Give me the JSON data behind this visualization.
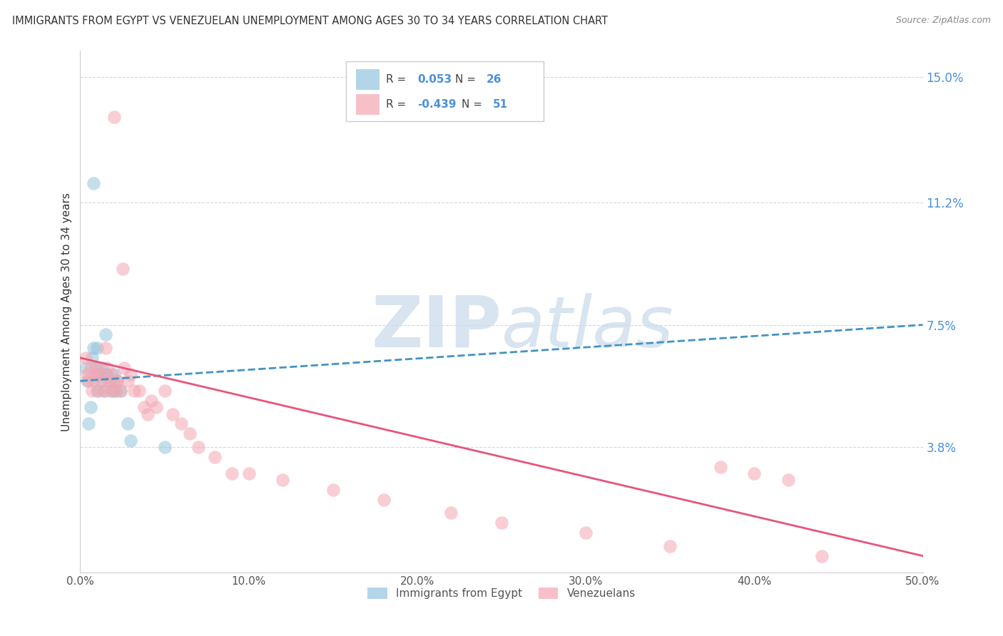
{
  "title": "IMMIGRANTS FROM EGYPT VS VENEZUELAN UNEMPLOYMENT AMONG AGES 30 TO 34 YEARS CORRELATION CHART",
  "source": "Source: ZipAtlas.com",
  "ylabel": "Unemployment Among Ages 30 to 34 years",
  "xlim": [
    0.0,
    0.5
  ],
  "ylim": [
    0.0,
    0.158
  ],
  "xticks": [
    0.0,
    0.1,
    0.2,
    0.3,
    0.4,
    0.5
  ],
  "xticklabels": [
    "0.0%",
    "10.0%",
    "20.0%",
    "30.0%",
    "40.0%",
    "50.0%"
  ],
  "right_yticks": [
    0.038,
    0.075,
    0.112,
    0.15
  ],
  "right_yticklabels": [
    "3.8%",
    "7.5%",
    "11.2%",
    "15.0%"
  ],
  "blue_color": "#92c5de",
  "pink_color": "#f4a6b2",
  "blue_line_color": "#4393c3",
  "pink_line_color": "#e8547a",
  "watermark_color": "#d8e4f0",
  "egypt_x": [
    0.003,
    0.004,
    0.005,
    0.006,
    0.007,
    0.008,
    0.009,
    0.01,
    0.01,
    0.011,
    0.012,
    0.013,
    0.014,
    0.015,
    0.015,
    0.016,
    0.018,
    0.019,
    0.02,
    0.021,
    0.022,
    0.024,
    0.028,
    0.03,
    0.05,
    0.008
  ],
  "egypt_y": [
    0.062,
    0.058,
    0.045,
    0.05,
    0.065,
    0.068,
    0.062,
    0.055,
    0.068,
    0.06,
    0.058,
    0.062,
    0.055,
    0.06,
    0.072,
    0.06,
    0.058,
    0.055,
    0.06,
    0.055,
    0.058,
    0.055,
    0.045,
    0.04,
    0.038,
    0.118
  ],
  "venezuela_x": [
    0.003,
    0.004,
    0.005,
    0.006,
    0.007,
    0.008,
    0.009,
    0.01,
    0.011,
    0.012,
    0.013,
    0.014,
    0.015,
    0.016,
    0.017,
    0.018,
    0.019,
    0.02,
    0.021,
    0.022,
    0.024,
    0.026,
    0.028,
    0.03,
    0.032,
    0.035,
    0.038,
    0.04,
    0.042,
    0.045,
    0.05,
    0.055,
    0.06,
    0.065,
    0.07,
    0.08,
    0.09,
    0.1,
    0.12,
    0.15,
    0.18,
    0.22,
    0.25,
    0.3,
    0.35,
    0.38,
    0.4,
    0.42,
    0.44,
    0.02,
    0.025
  ],
  "venezuela_y": [
    0.065,
    0.06,
    0.058,
    0.062,
    0.055,
    0.058,
    0.06,
    0.062,
    0.055,
    0.06,
    0.058,
    0.055,
    0.068,
    0.062,
    0.058,
    0.055,
    0.06,
    0.058,
    0.055,
    0.058,
    0.055,
    0.062,
    0.058,
    0.06,
    0.055,
    0.055,
    0.05,
    0.048,
    0.052,
    0.05,
    0.055,
    0.048,
    0.045,
    0.042,
    0.038,
    0.035,
    0.03,
    0.03,
    0.028,
    0.025,
    0.022,
    0.018,
    0.015,
    0.012,
    0.008,
    0.032,
    0.03,
    0.028,
    0.005,
    0.138,
    0.092
  ],
  "egypt_line_x": [
    0.0,
    0.5
  ],
  "egypt_line_y": [
    0.058,
    0.075
  ],
  "venezuela_line_x": [
    0.0,
    0.5
  ],
  "venezuela_line_y": [
    0.065,
    0.005
  ]
}
